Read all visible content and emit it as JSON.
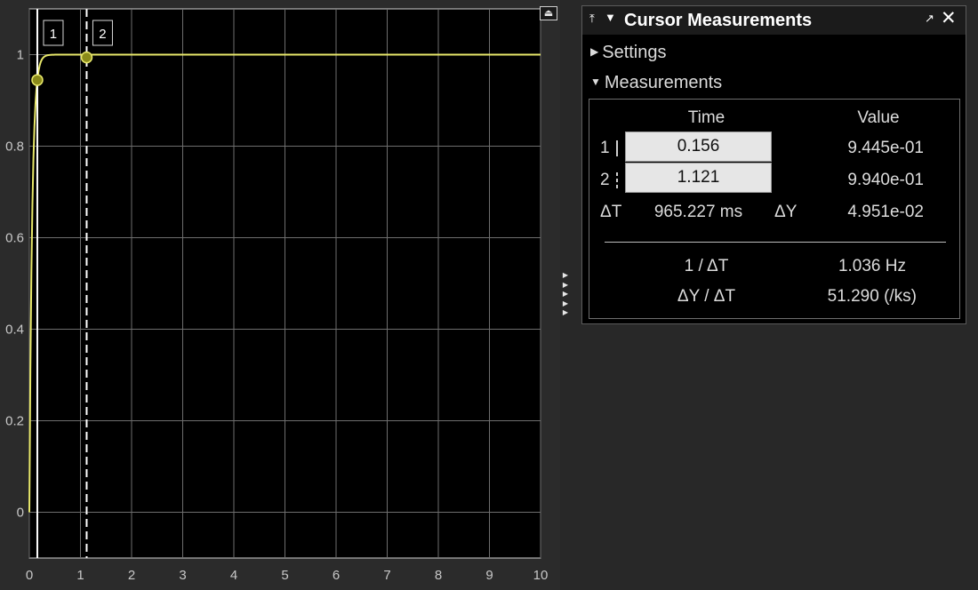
{
  "scope": {
    "x_axis": {
      "min": 0,
      "max": 10,
      "ticks": [
        "0",
        "1",
        "2",
        "3",
        "4",
        "5",
        "6",
        "7",
        "8",
        "9",
        "10"
      ]
    },
    "y_axis": {
      "min": -0.1,
      "max": 1.1,
      "ticks": [
        "0",
        "0.2",
        "0.4",
        "0.6",
        "0.8",
        "1"
      ]
    },
    "signal_color": "#e8e86a",
    "background_color": "#000000",
    "grid_color": "#6e6e6e",
    "cursors": [
      {
        "label": "1",
        "time": 0.156,
        "value": 0.9445,
        "style": "solid"
      },
      {
        "label": "2",
        "time": 1.121,
        "value": 0.994,
        "style": "dashed"
      }
    ]
  },
  "panel": {
    "title": "Cursor Measurements",
    "settings_label": "Settings",
    "measurements_label": "Measurements",
    "table": {
      "time_header": "Time",
      "value_header": "Value",
      "rows": [
        {
          "index": "1",
          "time": "0.156",
          "value": "9.445e-01"
        },
        {
          "index": "2",
          "time": "1.121",
          "value": "9.940e-01"
        }
      ],
      "delta_t_label": "ΔT",
      "delta_t_value": "965.227 ms",
      "delta_y_label": "ΔY",
      "delta_y_value": "4.951e-02",
      "inv_dt_label": "1 / ΔT",
      "inv_dt_value": "1.036 Hz",
      "slope_label": "ΔY / ΔT",
      "slope_value": "51.290 (/ks)"
    }
  }
}
